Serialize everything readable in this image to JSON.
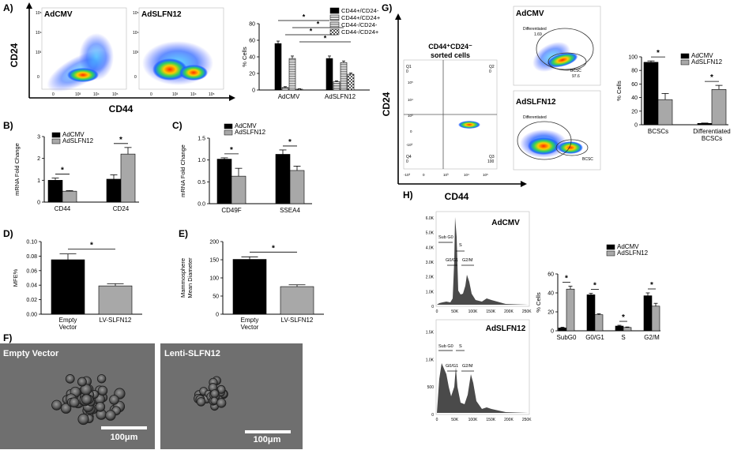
{
  "panels": {
    "A": {
      "letter": "A)",
      "flow_titles": [
        "AdCMV",
        "AdSLFN12"
      ],
      "y_label": "CD24",
      "x_label": "CD44"
    },
    "B": {
      "letter": "B)"
    },
    "C": {
      "letter": "C)"
    },
    "D": {
      "letter": "D)"
    },
    "E": {
      "letter": "E)"
    },
    "F": {
      "letter": "F)",
      "image_titles": [
        "Empty Vector",
        "Lenti-SLFN12"
      ],
      "scale_bar": "100μm"
    },
    "G": {
      "letter": "G)",
      "sorted_title": "CD44⁺CD24⁻",
      "sorted_subtitle": "sorted cells",
      "flow_titles": [
        "AdCMV",
        "AdSLFN12"
      ],
      "y_label": "CD24",
      "x_label": "CD44",
      "q_labels": [
        "Q1",
        "Q2",
        "Q4",
        "Q3"
      ],
      "q_values": [
        "0",
        "0",
        "0",
        "100"
      ],
      "gate_labels": {
        "top_diff": "Differentiated",
        "top_diff_val": "1.69",
        "top_bcsc": "BCSC",
        "top_bcsc_val": "97.6",
        "bot_diff": "Differentiated",
        "bot_bcsc": "BCSC"
      }
    },
    "H": {
      "letter": "H)",
      "hist_titles": [
        "AdCMV",
        "AdSLFN12"
      ],
      "gate_labels": [
        "Sub G0",
        "G0/G1",
        "S",
        "G2/M"
      ],
      "hist_x_ticks": [
        "0",
        "50K",
        "100K",
        "150K",
        "200K",
        "250K"
      ],
      "hist_y_ticks_top": [
        "0",
        "1.0K",
        "2.0K",
        "3.0K",
        "4.0K",
        "5.0K",
        "6.0K"
      ],
      "hist_y_ticks_bottom": [
        "0",
        "500",
        "1.0K",
        "1.5K"
      ]
    },
    "flow_axis": {
      "x_ticks": [
        "0",
        "10³",
        "10⁴",
        "10⁵"
      ],
      "y_ticks": [
        "0",
        "10³",
        "10⁴",
        "10⁵"
      ]
    },
    "flow_axis_g": {
      "x_ticks": [
        "-10³",
        "0",
        "10³",
        "10⁴",
        "10⁵"
      ],
      "y_ticks": [
        "-10³",
        "0",
        "10³",
        "10⁴",
        "10⁵"
      ]
    }
  },
  "colors": {
    "adcmv": "#000000",
    "adslfn12": "#a8a8a8",
    "bar3": "#9a9a9a",
    "bar4": "#c8c8c8"
  },
  "chart_data": [
    {
      "id": "A",
      "type": "bar",
      "ylabel": "% Cells",
      "ylim": [
        0,
        80
      ],
      "yticks": [
        0,
        20,
        40,
        60,
        80
      ],
      "categories": [
        "AdCMV",
        "AdSLFN12"
      ],
      "series": [
        {
          "name": "CD44+/CD24-",
          "values": [
            56,
            38
          ],
          "err": [
            3,
            3
          ],
          "pattern": "solid-black"
        },
        {
          "name": "CD44+/CD24+",
          "values": [
            3,
            10
          ],
          "err": [
            1,
            1
          ],
          "pattern": "hlines"
        },
        {
          "name": "CD44-/CD24-",
          "values": [
            38,
            33
          ],
          "err": [
            3,
            2
          ],
          "pattern": "hlines-light"
        },
        {
          "name": "CD44-/CD24+",
          "values": [
            1,
            19
          ],
          "err": [
            0.5,
            1.5
          ],
          "pattern": "checker"
        }
      ],
      "significance": [
        "*",
        "*",
        "*",
        "*"
      ]
    },
    {
      "id": "B",
      "type": "bar",
      "ylabel": "mRNA Fold Change",
      "ylim": [
        0,
        3
      ],
      "yticks": [
        0,
        1,
        2,
        3
      ],
      "categories": [
        "CD44",
        "CD24"
      ],
      "series": [
        {
          "name": "AdCMV",
          "values": [
            1.0,
            1.05
          ],
          "err": [
            0.1,
            0.2
          ]
        },
        {
          "name": "AdSLFN12",
          "values": [
            0.5,
            2.2
          ],
          "err": [
            0.03,
            0.3
          ]
        }
      ],
      "significance": [
        "*",
        "*"
      ]
    },
    {
      "id": "C",
      "type": "bar",
      "ylabel": "mRNA Fold Change",
      "ylim": [
        0,
        1.5
      ],
      "yticks": [
        0.0,
        0.5,
        1.0,
        1.5
      ],
      "categories": [
        "CD49F",
        "SSEA4"
      ],
      "series": [
        {
          "name": "AdCMV",
          "values": [
            1.02,
            1.13
          ],
          "err": [
            0.03,
            0.1
          ]
        },
        {
          "name": "AdSLFN12",
          "values": [
            0.63,
            0.76
          ],
          "err": [
            0.18,
            0.1
          ]
        }
      ],
      "significance": [
        "*",
        "*"
      ]
    },
    {
      "id": "D",
      "type": "bar",
      "ylabel": "MFE%",
      "ylim": [
        0,
        0.1
      ],
      "yticks": [
        0.0,
        0.02,
        0.04,
        0.06,
        0.08,
        0.1
      ],
      "categories": [
        "Empty Vector",
        "LV-SLFN12"
      ],
      "values": [
        0.075,
        0.039
      ],
      "err": [
        0.008,
        0.003
      ],
      "significance": [
        "*"
      ]
    },
    {
      "id": "E",
      "type": "bar",
      "ylabel": "Mammosphere Mean Diameter",
      "ylim": [
        0,
        200
      ],
      "yticks": [
        0,
        50,
        100,
        150,
        200
      ],
      "categories": [
        "Empty Vector",
        "LV-SLFN12"
      ],
      "values": [
        151,
        76
      ],
      "err": [
        7,
        5
      ],
      "significance": [
        "*"
      ]
    },
    {
      "id": "G",
      "type": "bar",
      "ylabel": "% Cells",
      "ylim": [
        0,
        100
      ],
      "yticks": [
        0,
        20,
        40,
        60,
        80,
        100
      ],
      "categories": [
        "BCSCs",
        "Differentiated BCSCs"
      ],
      "series": [
        {
          "name": "AdCMV",
          "values": [
            92,
            2
          ],
          "err": [
            2,
            0.5
          ]
        },
        {
          "name": "AdSLFN12",
          "values": [
            37,
            52
          ],
          "err": [
            9,
            6
          ]
        }
      ],
      "significance": [
        "*",
        "*"
      ]
    },
    {
      "id": "H",
      "type": "bar",
      "ylabel": "% Cells",
      "ylim": [
        0,
        60
      ],
      "yticks": [
        0,
        20,
        40,
        60
      ],
      "categories": [
        "SubG0",
        "G0/G1",
        "S",
        "G2/M"
      ],
      "series": [
        {
          "name": "AdCMV",
          "values": [
            3,
            38,
            5,
            37
          ],
          "err": [
            0.8,
            1.5,
            0.8,
            3
          ]
        },
        {
          "name": "AdSLFN12",
          "values": [
            44,
            17,
            3.5,
            26
          ],
          "err": [
            3,
            1,
            0.5,
            3
          ]
        }
      ],
      "significance": [
        "*",
        "*",
        "*",
        "*"
      ]
    }
  ]
}
